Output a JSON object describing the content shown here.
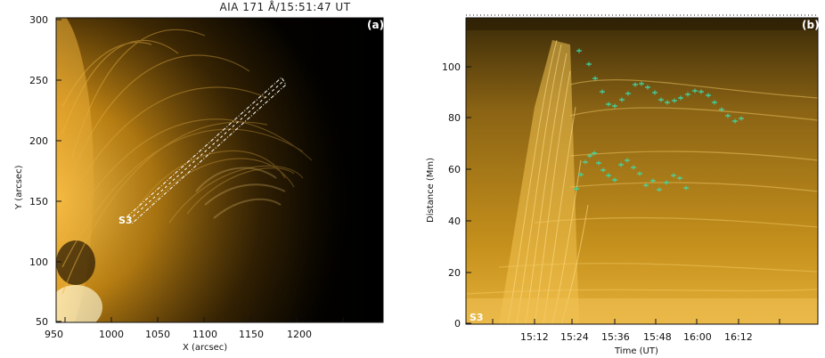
{
  "panel_a": {
    "title": "AIA 171 Å/15:51:47 UT",
    "label": "(a)",
    "slit_label": "S3",
    "x_axis": {
      "title": "X (arcsec)",
      "ticks": [
        "950",
        "1000",
        "1050",
        "1100",
        "1150",
        "1200"
      ]
    },
    "y_axis": {
      "title": "Y (arcsec)",
      "ticks": [
        "300",
        "250",
        "200",
        "150",
        "100",
        "50"
      ]
    }
  },
  "panel_b": {
    "label": "(b)",
    "slit_label": "S3",
    "x_axis": {
      "title": "Time (UT)",
      "ticks": [
        "15:12",
        "15:24",
        "15:36",
        "15:48",
        "16:00",
        "16:12"
      ]
    },
    "y_axis": {
      "title": "Distance (Mm)",
      "ticks": [
        "100",
        "80",
        "60",
        "40",
        "20",
        "0"
      ]
    },
    "marker_color": "#38e0b0"
  },
  "colors": {
    "aia171": "#e0a020",
    "background": "#000000"
  }
}
